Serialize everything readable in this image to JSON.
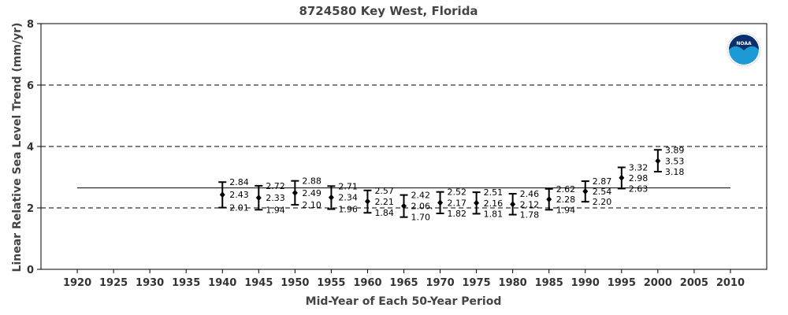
{
  "chart_data": {
    "type": "scatter",
    "title": "8724580 Key West, Florida",
    "xlabel": "Mid-Year of Each 50-Year Period",
    "ylabel": "Linear Relative Sea Level Trend (mm/yr)",
    "xlim": [
      1915,
      2015
    ],
    "ylim": [
      0,
      8
    ],
    "xticks": [
      1920,
      1925,
      1930,
      1935,
      1940,
      1945,
      1950,
      1955,
      1960,
      1965,
      1970,
      1975,
      1980,
      1985,
      1990,
      1995,
      2000,
      2005,
      2010
    ],
    "yticks": [
      0,
      2,
      4,
      6,
      8
    ],
    "grid_y": [
      2,
      4,
      6
    ],
    "grid_style": "dashed",
    "reference_line": {
      "value": 2.65,
      "from": 1920,
      "to": 2010
    },
    "series": [
      {
        "x": [
          1940,
          1945,
          1950,
          1955,
          1960,
          1965,
          1970,
          1975,
          1980,
          1985,
          1990,
          1995,
          2000
        ],
        "trend": [
          2.43,
          2.33,
          2.49,
          2.34,
          2.21,
          2.06,
          2.17,
          2.16,
          2.12,
          2.28,
          2.54,
          2.98,
          3.53
        ],
        "upper": [
          2.84,
          2.72,
          2.88,
          2.71,
          2.57,
          2.42,
          2.52,
          2.51,
          2.46,
          2.62,
          2.87,
          3.32,
          3.89
        ],
        "lower": [
          2.01,
          1.94,
          2.1,
          1.96,
          1.84,
          1.7,
          1.82,
          1.81,
          1.78,
          1.94,
          2.2,
          2.63,
          3.18
        ]
      }
    ],
    "labels": {
      "trend": [
        "2.43",
        "2.33",
        "2.49",
        "2.34",
        "2.21",
        "2.06.",
        "2.17",
        "2.16",
        "2.12",
        "2.28",
        "2.54",
        "2.98",
        "3.53"
      ],
      "upper": [
        "2.84",
        "2.72",
        "2.88",
        "2.71",
        "2.57",
        "2.42",
        "2.52",
        "2.51",
        "2.46",
        "2.62",
        "2.87",
        "3.32",
        "3.89"
      ],
      "lower": [
        "2.01",
        "1.94",
        "2.10",
        "1.96",
        "1.84",
        "1.70",
        "1.82",
        "1.81",
        "1.78",
        "1.94",
        "2.20",
        "2.63",
        "3.18"
      ]
    },
    "logo": {
      "text": "NOAA",
      "color_outer": "#1b9ad6",
      "color_inner": "#0a2f6e"
    },
    "colors": {
      "marker": "#000000",
      "grid": "#000000",
      "axis_text": "#333333",
      "title": "#444444"
    }
  }
}
